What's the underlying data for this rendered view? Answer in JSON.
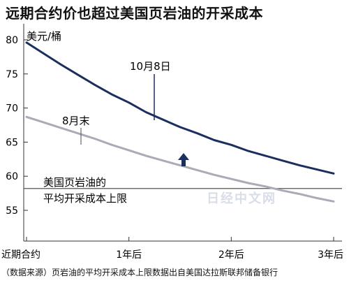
{
  "chart_data": {
    "type": "line",
    "title": "远期合约价也超过美国页岩油的开采成本",
    "unit_label": "美元/桶",
    "source": "（数据来源）页岩油的平均开采成本上限数据出自美国达拉斯联邦储备银行",
    "x_ticks": [
      "近期合约",
      "1年后",
      "2年后",
      "3年后"
    ],
    "y_ticks": [
      55,
      60,
      65,
      70,
      75,
      80
    ],
    "ylim": [
      54,
      81.5
    ],
    "xlim": [
      0,
      36
    ],
    "series": [
      {
        "name": "10月8日",
        "color": "#1b2f5e",
        "x": [
          0,
          2,
          4,
          6,
          8,
          10,
          12,
          14,
          16,
          18,
          20,
          22,
          24,
          26,
          28,
          30,
          32,
          34,
          36
        ],
        "y": [
          79.6,
          78.0,
          76.4,
          74.9,
          73.4,
          72.0,
          70.8,
          69.4,
          68.3,
          67.2,
          66.3,
          65.3,
          64.6,
          63.7,
          63.0,
          62.3,
          61.6,
          61.0,
          60.4
        ]
      },
      {
        "name": "8月末",
        "color": "#aaaab8",
        "x": [
          0,
          2,
          4,
          6,
          8,
          10,
          12,
          14,
          16,
          18,
          20,
          22,
          24,
          26,
          28,
          30,
          32,
          34,
          36
        ],
        "y": [
          68.7,
          67.9,
          67.1,
          66.3,
          65.5,
          64.6,
          63.8,
          63.0,
          62.3,
          61.6,
          60.9,
          60.2,
          59.6,
          59.0,
          58.5,
          57.9,
          57.4,
          56.8,
          56.3
        ]
      }
    ],
    "reference_line": {
      "label": "美国页岩油的\n平均开采成本上限",
      "value": 58.2,
      "color": "#555555"
    },
    "annotations": {
      "series_labels": [
        "10月8日",
        "8月末"
      ],
      "arrow": "up"
    },
    "watermark": "日经中文网",
    "grid": false
  }
}
